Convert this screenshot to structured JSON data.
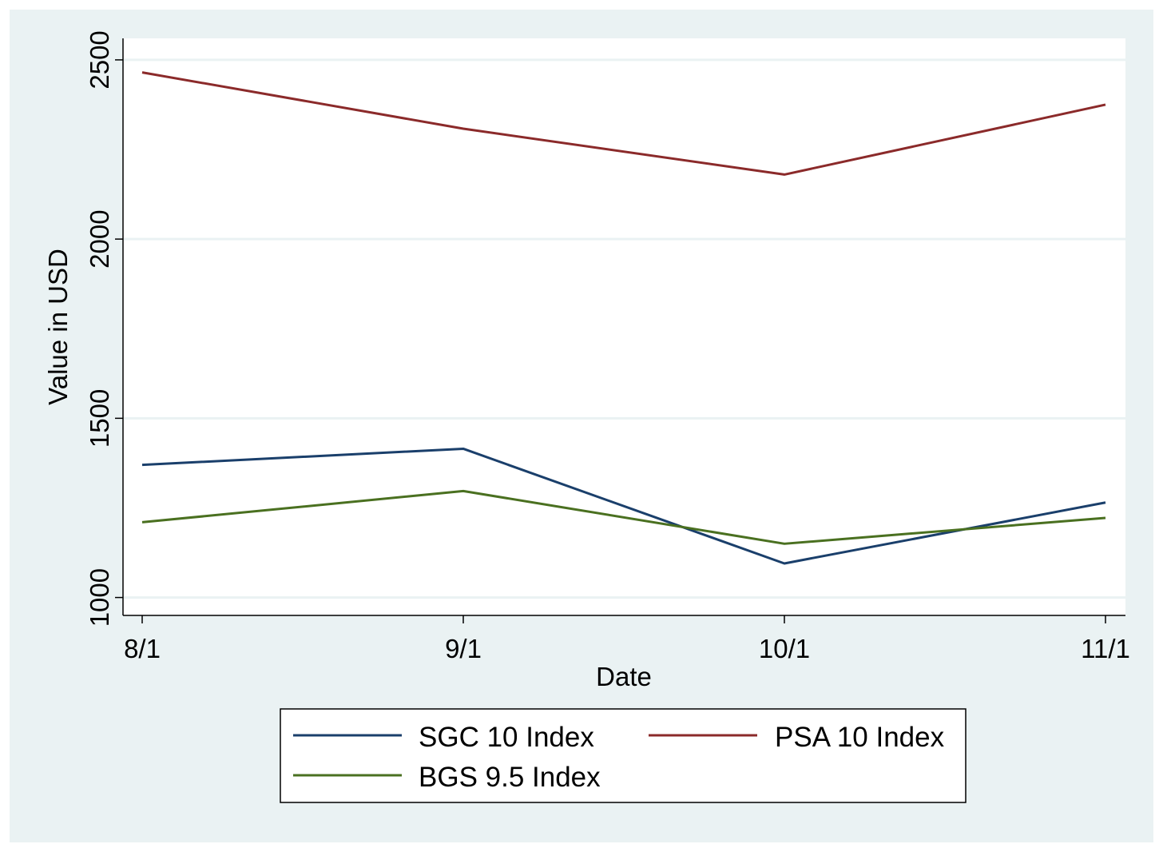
{
  "chart_data": {
    "type": "line",
    "xlabel": "Date",
    "ylabel": "Value in USD",
    "categories": [
      "8/1",
      "9/1",
      "10/1",
      "11/1"
    ],
    "ylim": [
      950,
      2560
    ],
    "yticks": [
      1000,
      1500,
      2000,
      2500
    ],
    "grid": true,
    "legend_position": "bottom",
    "series": [
      {
        "name": "SGC 10 Index",
        "color": "#1a3f6b",
        "values": [
          1370,
          1415,
          1095,
          1265
        ]
      },
      {
        "name": "PSA 10 Index",
        "color": "#8b2a2a",
        "values": [
          2465,
          2308,
          2180,
          2375
        ]
      },
      {
        "name": "BGS 9.5 Index",
        "color": "#4a7020",
        "values": [
          1210,
          1297,
          1150,
          1222
        ]
      }
    ],
    "colors": {
      "background": "#eaf2f3",
      "plot_background": "#ffffff",
      "gridline": "#eaf2f3"
    }
  }
}
